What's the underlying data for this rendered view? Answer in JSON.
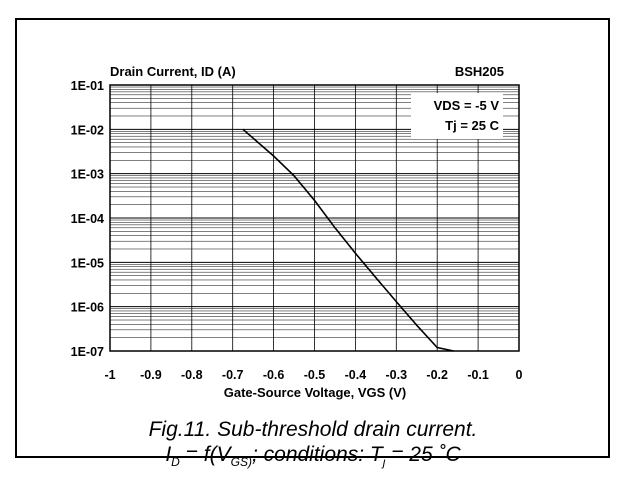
{
  "chart_data": {
    "type": "line",
    "scale_y": "log",
    "title_left": "Drain Current, ID (A)",
    "title_right": "BSH205",
    "xlabel": "Gate-Source Voltage, VGS (V)",
    "xlim": [
      -1,
      0
    ],
    "ylim": [
      1e-07,
      0.1
    ],
    "x_ticks": [
      "-1",
      "-0.9",
      "-0.8",
      "-0.7",
      "-0.6",
      "-0.5",
      "-0.4",
      "-0.3",
      "-0.2",
      "-0.1",
      "0"
    ],
    "y_ticks": [
      "1E-01",
      "1E-02",
      "1E-03",
      "1E-04",
      "1E-05",
      "1E-06",
      "1E-07"
    ],
    "grid": true,
    "annotations": [
      "VDS = -5 V",
      "Tj = 25 C"
    ],
    "series": [
      {
        "x": [
          -0.675,
          -0.6,
          -0.55,
          -0.5,
          -0.45,
          -0.4,
          -0.35,
          -0.3,
          -0.25,
          -0.2,
          -0.16
        ],
        "y": [
          0.01,
          0.0025,
          0.0009,
          0.00025,
          6e-05,
          1.6e-05,
          4.5e-06,
          1.3e-06,
          3.8e-07,
          1.2e-07,
          1e-07
        ]
      }
    ]
  },
  "caption": {
    "line1": "Fig.11.   Sub-threshold drain current.",
    "line2_prefix": "I",
    "line2_sub1": "D",
    "line2_mid": " = f(V",
    "line2_sub2": "GS)",
    "line2_tail": "; conditions: T",
    "line2_sub3": "j",
    "line2_end": " = 25 ˚C"
  }
}
